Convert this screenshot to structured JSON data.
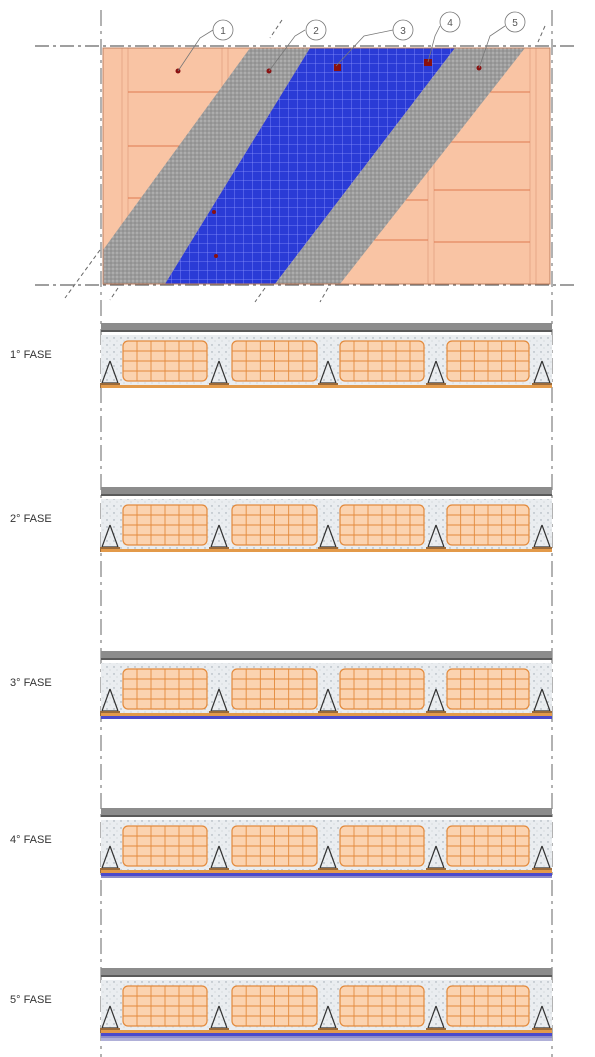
{
  "plan": {
    "callouts": [
      "1",
      "2",
      "3",
      "4",
      "5"
    ]
  },
  "phases": [
    {
      "label": "1° FASE",
      "layers": [
        "deck",
        "joists",
        "reinforcement"
      ]
    },
    {
      "label": "2° FASE",
      "layers": [
        "deck",
        "joists",
        "reinforcement"
      ]
    },
    {
      "label": "3° FASE",
      "layers": [
        "deck",
        "joists",
        "reinforcement",
        "mesh-layer"
      ]
    },
    {
      "label": "4° FASE",
      "layers": [
        "deck",
        "joists",
        "reinforcement",
        "mesh-layer",
        "finish"
      ]
    },
    {
      "label": "5° FASE",
      "layers": [
        "deck",
        "joists",
        "reinforcement",
        "mesh-layer",
        "finish",
        "coating"
      ]
    }
  ],
  "colors": {
    "block": "#f9c4a4",
    "block_line": "#e07a50",
    "gray_band": "#9a9a9a",
    "blue_band": "#2233cc",
    "concrete": "#e9ecef",
    "deck": "#8c8c8c",
    "mesh_line": "#e38a3c",
    "blue_layer": "#4a4acc",
    "mark": "#8a1010"
  }
}
